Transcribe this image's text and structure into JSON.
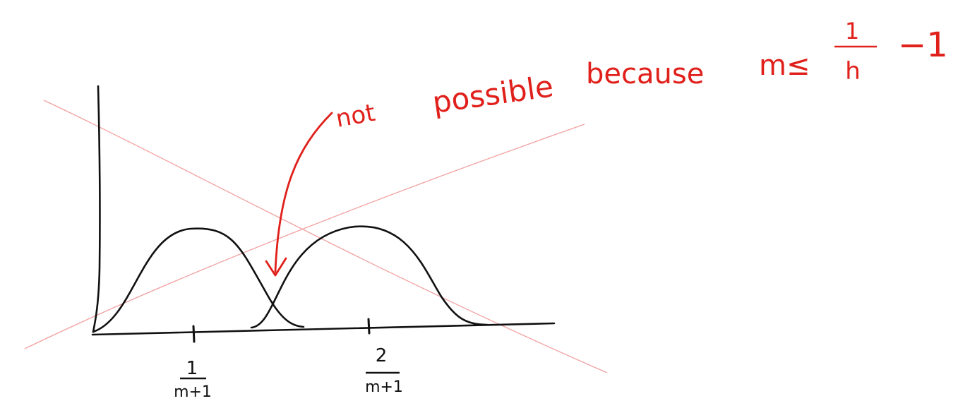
{
  "sketch": {
    "annotation": {
      "word_not": "not",
      "word_possible": "possible",
      "word_because": "because",
      "condition_lhs": "m≤",
      "fraction_numerator": "1",
      "fraction_denominator": "h",
      "condition_rhs": "−1"
    },
    "ticks": [
      {
        "numerator": "1",
        "denominator": "m+1"
      },
      {
        "numerator": "2",
        "denominator": "m+1"
      }
    ],
    "ink_color": "#111111",
    "annotation_color": "#e0201b",
    "crossout_color": "#f2a0a0"
  }
}
